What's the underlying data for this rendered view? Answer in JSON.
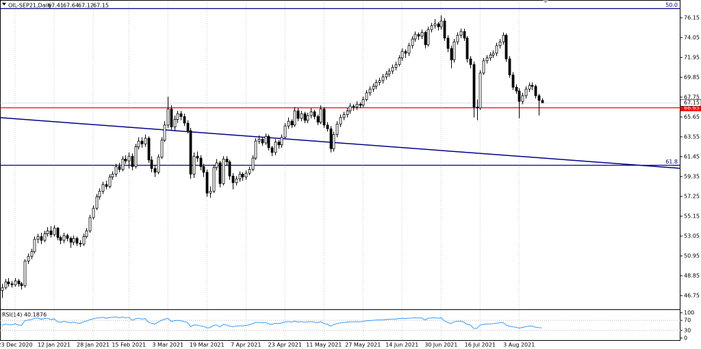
{
  "chart_data": {
    "type": "candlestick",
    "symbol": "OIL-SEP21,Daily",
    "ylim": [
      45.3,
      77.74
    ],
    "yticks": [
      46.75,
      48.85,
      50.95,
      53.05,
      55.15,
      57.25,
      59.35,
      61.45,
      63.55,
      65.65,
      67.75,
      69.85,
      71.95,
      74.05,
      76.15
    ],
    "xlim": [
      -0.63,
      208.63
    ],
    "xticks": [
      {
        "value": 4,
        "label": "23 Dec 2020"
      },
      {
        "value": 16,
        "label": "12 Jan 2021"
      },
      {
        "value": 28,
        "label": "28 Jan 2021"
      },
      {
        "value": 39,
        "label": "15 Feb 2021"
      },
      {
        "value": 51,
        "label": "3 Mar 2021"
      },
      {
        "value": 63,
        "label": "19 Mar 2021"
      },
      {
        "value": 75,
        "label": "7 Apr 2021"
      },
      {
        "value": 87,
        "label": "23 Apr 2021"
      },
      {
        "value": 99,
        "label": "11 May 2021"
      },
      {
        "value": 111,
        "label": "27 May 2021"
      },
      {
        "value": 123,
        "label": "14 Jun 2021"
      },
      {
        "value": 135,
        "label": "30 Jun 2021"
      },
      {
        "value": 147,
        "label": "16 Jul 2021"
      },
      {
        "value": 159,
        "label": "3 Aug 2021"
      }
    ],
    "up_color": "#ffffff",
    "down_color": "#000000",
    "ohlc": [
      [
        47.3,
        48.0,
        46.5,
        47.6
      ],
      [
        47.6,
        48.5,
        47.4,
        48.2
      ],
      [
        48.2,
        48.6,
        47.7,
        48.0
      ],
      [
        48.0,
        48.3,
        47.6,
        47.9
      ],
      [
        47.9,
        48.6,
        47.7,
        48.3
      ],
      [
        48.3,
        48.5,
        47.7,
        48.0
      ],
      [
        48.0,
        48.2,
        47.4,
        47.8
      ],
      [
        47.8,
        50.6,
        47.6,
        50.4
      ],
      [
        50.4,
        51.2,
        50.1,
        50.9
      ],
      [
        50.9,
        51.7,
        50.6,
        51.4
      ],
      [
        51.4,
        53.0,
        51.2,
        52.7
      ],
      [
        52.7,
        53.3,
        52.3,
        53.0
      ],
      [
        53.0,
        53.4,
        52.2,
        52.6
      ],
      [
        52.6,
        53.6,
        52.4,
        53.3
      ],
      [
        53.3,
        54.0,
        53.0,
        53.6
      ],
      [
        53.6,
        54.1,
        52.9,
        53.2
      ],
      [
        53.2,
        54.2,
        53.0,
        53.9
      ],
      [
        53.9,
        54.0,
        52.6,
        52.9
      ],
      [
        52.9,
        53.1,
        52.2,
        52.6
      ],
      [
        52.6,
        53.4,
        52.3,
        53.1
      ],
      [
        53.1,
        53.3,
        52.5,
        52.8
      ],
      [
        52.8,
        53.0,
        51.8,
        52.4
      ],
      [
        52.4,
        53.1,
        52.1,
        52.8
      ],
      [
        52.8,
        53.0,
        52.0,
        52.3
      ],
      [
        52.3,
        52.6,
        51.9,
        52.2
      ],
      [
        52.2,
        53.3,
        52.0,
        53.0
      ],
      [
        53.0,
        53.9,
        52.8,
        53.6
      ],
      [
        53.6,
        55.3,
        53.4,
        55.0
      ],
      [
        55.0,
        56.3,
        54.8,
        56.0
      ],
      [
        56.0,
        57.5,
        55.8,
        57.2
      ],
      [
        57.2,
        58.1,
        56.9,
        57.8
      ],
      [
        57.8,
        58.8,
        57.5,
        58.5
      ],
      [
        58.5,
        58.9,
        58.0,
        58.3
      ],
      [
        58.3,
        59.6,
        58.1,
        59.3
      ],
      [
        59.3,
        59.9,
        59.0,
        59.6
      ],
      [
        59.6,
        60.7,
        59.3,
        60.4
      ],
      [
        60.4,
        60.8,
        59.8,
        60.1
      ],
      [
        60.1,
        61.5,
        59.9,
        61.2
      ],
      [
        61.2,
        61.6,
        60.7,
        61.0
      ],
      [
        61.0,
        61.9,
        60.2,
        61.5
      ],
      [
        61.5,
        61.8,
        60.0,
        60.4
      ],
      [
        60.4,
        62.8,
        60.2,
        62.5
      ],
      [
        62.5,
        63.5,
        62.2,
        63.1
      ],
      [
        63.1,
        63.5,
        62.4,
        62.8
      ],
      [
        62.8,
        63.8,
        62.5,
        63.4
      ],
      [
        63.4,
        63.6,
        60.8,
        61.1
      ],
      [
        61.1,
        61.5,
        59.8,
        60.2
      ],
      [
        60.2,
        60.6,
        59.3,
        59.8
      ],
      [
        59.8,
        61.7,
        59.6,
        61.4
      ],
      [
        61.4,
        63.5,
        61.2,
        63.2
      ],
      [
        63.2,
        65.2,
        63.0,
        64.8
      ],
      [
        64.8,
        67.8,
        64.5,
        66.5
      ],
      [
        66.5,
        66.9,
        64.3,
        64.6
      ],
      [
        64.6,
        65.8,
        64.2,
        65.4
      ],
      [
        65.4,
        66.3,
        65.0,
        66.0
      ],
      [
        66.0,
        66.3,
        65.3,
        65.7
      ],
      [
        65.7,
        66.0,
        64.7,
        65.0
      ],
      [
        65.0,
        65.3,
        63.9,
        64.2
      ],
      [
        64.2,
        64.5,
        59.1,
        59.6
      ],
      [
        59.6,
        61.9,
        59.2,
        61.5
      ],
      [
        61.5,
        62.0,
        60.9,
        61.3
      ],
      [
        61.3,
        61.6,
        60.0,
        60.4
      ],
      [
        60.4,
        60.7,
        59.3,
        59.8
      ],
      [
        59.8,
        60.1,
        57.2,
        57.6
      ],
      [
        57.6,
        58.3,
        57.1,
        57.8
      ],
      [
        57.8,
        60.6,
        57.6,
        60.3
      ],
      [
        60.3,
        61.2,
        60.0,
        60.8
      ],
      [
        60.8,
        61.0,
        58.2,
        58.6
      ],
      [
        58.6,
        61.5,
        58.4,
        61.2
      ],
      [
        61.2,
        61.5,
        60.5,
        60.9
      ],
      [
        60.9,
        61.1,
        59.0,
        59.4
      ],
      [
        59.4,
        59.7,
        58.0,
        58.7
      ],
      [
        58.7,
        59.4,
        58.4,
        59.1
      ],
      [
        59.1,
        59.9,
        58.8,
        59.6
      ],
      [
        59.6,
        59.8,
        58.9,
        59.3
      ],
      [
        59.3,
        60.0,
        59.0,
        59.7
      ],
      [
        59.7,
        60.4,
        59.5,
        60.1
      ],
      [
        60.1,
        61.6,
        59.9,
        61.3
      ],
      [
        61.3,
        63.4,
        61.1,
        63.1
      ],
      [
        63.1,
        63.7,
        62.8,
        63.3
      ],
      [
        63.3,
        63.5,
        62.6,
        62.9
      ],
      [
        62.9,
        63.9,
        62.7,
        63.6
      ],
      [
        63.6,
        63.8,
        62.1,
        62.4
      ],
      [
        62.4,
        62.6,
        61.5,
        61.9
      ],
      [
        61.9,
        63.3,
        61.6,
        63.0
      ],
      [
        63.0,
        63.2,
        62.3,
        62.7
      ],
      [
        62.7,
        63.8,
        62.4,
        63.5
      ],
      [
        63.5,
        65.0,
        63.3,
        64.7
      ],
      [
        64.7,
        65.6,
        64.4,
        65.2
      ],
      [
        65.2,
        65.4,
        64.5,
        64.8
      ],
      [
        64.8,
        66.7,
        64.6,
        66.3
      ],
      [
        66.3,
        66.6,
        65.2,
        65.5
      ],
      [
        65.5,
        66.3,
        65.2,
        66.0
      ],
      [
        66.0,
        66.2,
        65.0,
        65.3
      ],
      [
        65.3,
        66.1,
        65.0,
        65.8
      ],
      [
        65.8,
        66.6,
        65.5,
        66.2
      ],
      [
        66.2,
        66.4,
        65.4,
        65.7
      ],
      [
        65.7,
        65.9,
        64.8,
        65.1
      ],
      [
        65.1,
        66.9,
        64.9,
        66.5
      ],
      [
        66.5,
        66.7,
        64.5,
        64.8
      ],
      [
        64.8,
        65.1,
        64.1,
        64.4
      ],
      [
        64.4,
        64.7,
        61.9,
        62.3
      ],
      [
        62.3,
        64.1,
        62.0,
        63.8
      ],
      [
        63.8,
        65.2,
        63.5,
        64.9
      ],
      [
        64.9,
        65.9,
        64.6,
        65.6
      ],
      [
        65.6,
        66.2,
        65.3,
        65.9
      ],
      [
        65.9,
        66.6,
        65.6,
        66.3
      ],
      [
        66.3,
        67.1,
        66.0,
        66.8
      ],
      [
        66.8,
        67.0,
        66.3,
        66.7
      ],
      [
        66.7,
        67.3,
        66.4,
        67.0
      ],
      [
        67.0,
        67.2,
        66.6,
        66.9
      ],
      [
        66.9,
        67.8,
        66.7,
        67.5
      ],
      [
        67.5,
        68.5,
        67.3,
        68.2
      ],
      [
        68.2,
        68.9,
        67.9,
        68.6
      ],
      [
        68.6,
        69.2,
        68.3,
        68.9
      ],
      [
        68.9,
        69.6,
        68.6,
        69.3
      ],
      [
        69.3,
        69.8,
        69.0,
        69.5
      ],
      [
        69.5,
        70.2,
        69.2,
        69.9
      ],
      [
        69.9,
        70.5,
        69.6,
        70.2
      ],
      [
        70.2,
        70.8,
        69.9,
        70.5
      ],
      [
        70.5,
        71.2,
        70.2,
        70.9
      ],
      [
        70.9,
        71.5,
        70.6,
        71.2
      ],
      [
        71.2,
        72.2,
        71.0,
        71.9
      ],
      [
        71.9,
        72.9,
        71.6,
        72.6
      ],
      [
        72.6,
        72.8,
        71.9,
        72.4
      ],
      [
        72.4,
        73.5,
        72.1,
        73.2
      ],
      [
        73.2,
        74.2,
        72.9,
        73.9
      ],
      [
        73.9,
        74.7,
        73.6,
        74.4
      ],
      [
        74.4,
        74.6,
        73.8,
        74.2
      ],
      [
        74.2,
        74.9,
        73.9,
        74.6
      ],
      [
        74.6,
        74.8,
        72.9,
        73.3
      ],
      [
        73.3,
        75.2,
        73.1,
        74.9
      ],
      [
        74.9,
        75.6,
        74.6,
        75.3
      ],
      [
        75.3,
        76.0,
        75.0,
        75.5
      ],
      [
        75.5,
        75.7,
        74.8,
        75.2
      ],
      [
        75.2,
        76.4,
        74.9,
        75.8
      ],
      [
        75.8,
        76.1,
        73.7,
        74.0
      ],
      [
        74.0,
        74.3,
        72.5,
        72.9
      ],
      [
        72.9,
        73.2,
        70.8,
        71.7
      ],
      [
        71.7,
        73.9,
        71.4,
        73.6
      ],
      [
        73.6,
        74.6,
        73.3,
        74.3
      ],
      [
        74.3,
        75.0,
        74.0,
        74.7
      ],
      [
        74.7,
        75.0,
        73.7,
        74.0
      ],
      [
        74.0,
        74.2,
        71.4,
        71.8
      ],
      [
        71.8,
        72.1,
        70.8,
        71.2
      ],
      [
        71.2,
        71.5,
        65.6,
        66.7
      ],
      [
        66.7,
        67.5,
        65.3,
        66.6
      ],
      [
        66.6,
        70.6,
        66.4,
        70.3
      ],
      [
        70.3,
        71.9,
        70.1,
        71.6
      ],
      [
        71.6,
        72.2,
        71.3,
        71.9
      ],
      [
        71.9,
        72.5,
        71.6,
        72.2
      ],
      [
        72.2,
        72.7,
        71.9,
        72.4
      ],
      [
        72.4,
        73.5,
        72.1,
        73.2
      ],
      [
        73.2,
        73.9,
        72.9,
        73.6
      ],
      [
        73.6,
        74.6,
        73.3,
        74.3
      ],
      [
        74.3,
        74.5,
        71.5,
        71.8
      ],
      [
        71.8,
        72.1,
        69.8,
        70.1
      ],
      [
        70.1,
        70.4,
        68.5,
        68.8
      ],
      [
        68.8,
        69.1,
        68.1,
        68.4
      ],
      [
        68.4,
        68.7,
        65.5,
        67.3
      ],
      [
        67.3,
        68.2,
        67.0,
        67.9
      ],
      [
        67.9,
        68.9,
        67.6,
        68.6
      ],
      [
        68.6,
        69.3,
        68.3,
        69.0
      ],
      [
        69.0,
        69.3,
        68.5,
        68.9
      ],
      [
        68.9,
        69.1,
        67.6,
        67.9
      ],
      [
        67.9,
        68.1,
        65.8,
        67.41
      ],
      [
        67.41,
        67.64,
        67.12,
        67.15
      ]
    ],
    "hlines": [
      {
        "label": "50.0",
        "value": 77.16,
        "color": "#00008b"
      },
      {
        "label": "61.8",
        "value": 60.58,
        "color": "#00008b"
      },
      {
        "value": 66.65,
        "color": "#ff0000"
      }
    ],
    "trendline": {
      "start": 65.58,
      "end": 60.22,
      "color": "#00008b"
    },
    "rsi": {
      "label": "RSI(14) 40.1876",
      "color": "#1e90ff",
      "ylim": [
        0,
        100
      ],
      "yticks": [
        0,
        30,
        70,
        100
      ],
      "levels": [
        30,
        70
      ],
      "values": [
        50,
        55,
        53,
        52,
        56,
        52,
        50,
        68,
        71,
        73,
        78,
        79,
        74,
        77,
        78,
        73,
        76,
        65,
        62,
        66,
        63,
        60,
        63,
        59,
        58,
        64,
        67,
        73,
        76,
        79,
        80,
        82,
        78,
        81,
        82,
        84,
        80,
        83,
        80,
        82,
        70,
        76,
        78,
        75,
        77,
        63,
        58,
        55,
        63,
        70,
        74,
        78,
        66,
        68,
        70,
        68,
        65,
        62,
        45,
        52,
        51,
        48,
        46,
        40,
        41,
        50,
        52,
        44,
        53,
        52,
        47,
        45,
        47,
        49,
        48,
        50,
        52,
        56,
        62,
        62,
        60,
        62,
        56,
        54,
        58,
        57,
        60,
        63,
        65,
        63,
        67,
        63,
        65,
        62,
        64,
        65,
        63,
        60,
        65,
        57,
        55,
        47,
        53,
        57,
        60,
        61,
        63,
        64,
        64,
        65,
        64,
        66,
        68,
        69,
        70,
        71,
        72,
        72,
        73,
        74,
        75,
        75,
        77,
        78,
        77,
        78,
        79,
        80,
        79,
        80,
        71,
        78,
        79,
        80,
        78,
        80,
        68,
        62,
        57,
        64,
        66,
        67,
        63,
        54,
        52,
        38,
        38,
        51,
        54,
        55,
        56,
        57,
        59,
        60,
        62,
        52,
        47,
        44,
        43,
        39,
        42,
        45,
        47,
        47,
        43,
        41,
        40.1876
      ]
    }
  }
}
